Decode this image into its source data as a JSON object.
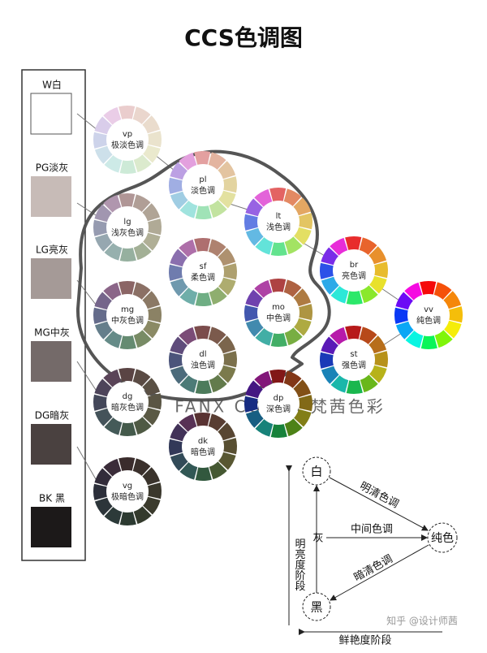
{
  "title": "CCS色调图",
  "gray_scale": [
    {
      "label": "W白"
    },
    {
      "label": "PG淡灰"
    },
    {
      "label": "LG亮灰"
    },
    {
      "label": "MG中灰"
    },
    {
      "label": "DG暗灰"
    },
    {
      "label": "BK 黑"
    }
  ],
  "wheels": [
    {
      "code": "vp",
      "name": "极淡色调"
    },
    {
      "code": "pl",
      "name": "淡色调"
    },
    {
      "code": "lg",
      "name": "浅灰色调"
    },
    {
      "code": "lt",
      "name": "浅色调"
    },
    {
      "code": "sf",
      "name": "柔色调"
    },
    {
      "code": "br",
      "name": "亮色调"
    },
    {
      "code": "mg",
      "name": "中灰色调"
    },
    {
      "code": "mo",
      "name": "中色调"
    },
    {
      "code": "vv",
      "name": "纯色调"
    },
    {
      "code": "dl",
      "name": "浊色调"
    },
    {
      "code": "st",
      "name": "强色调"
    },
    {
      "code": "dg",
      "name": "暗灰色调"
    },
    {
      "code": "dp",
      "name": "深色调"
    },
    {
      "code": "dk",
      "name": "暗色调"
    },
    {
      "code": "vg",
      "name": "极暗色调"
    }
  ],
  "watermark": "FANX COLOR 梵茜色彩",
  "scheme": {
    "nodes": {
      "white": "白",
      "pure": "纯色",
      "black": "黑",
      "gray": "灰"
    },
    "edges": {
      "top": "明清色调",
      "middle": "中间色调",
      "bottom": "暗清色调"
    },
    "vertical_axis": "明亮度阶段",
    "horizontal_axis": "鲜艳度阶段"
  },
  "credit": "知乎 @设计师茜"
}
